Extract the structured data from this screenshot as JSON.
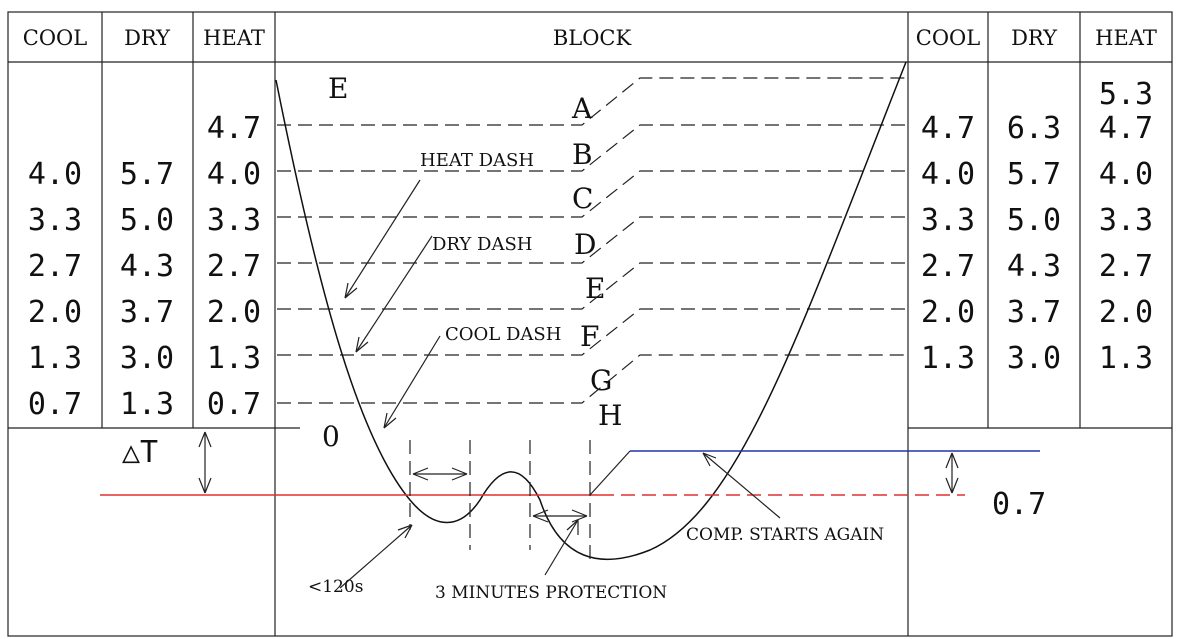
{
  "headers": {
    "left": [
      "COOL",
      "DRY",
      "HEAT"
    ],
    "center": "BLOCK",
    "right": [
      "COOL",
      "DRY",
      "HEAT"
    ]
  },
  "left_table": {
    "cool": [
      "4.0",
      "3.3",
      "2.7",
      "2.0",
      "1.3",
      "0.7"
    ],
    "dry": [
      "5.7",
      "5.0",
      "4.3",
      "3.7",
      "3.0",
      "1.3"
    ],
    "heat": [
      "4.7",
      "4.0",
      "3.3",
      "2.7",
      "2.0",
      "1.3",
      "0.7"
    ]
  },
  "right_table": {
    "cool": [
      "4.7",
      "4.0",
      "3.3",
      "2.7",
      "2.0",
      "1.3"
    ],
    "dry": [
      "6.3",
      "5.7",
      "5.0",
      "4.3",
      "3.7",
      "3.0"
    ],
    "heat": [
      "5.3",
      "4.7",
      "4.0",
      "3.3",
      "2.7",
      "2.0",
      "1.3"
    ]
  },
  "block_letters": [
    "A",
    "B",
    "C",
    "D",
    "E",
    "F",
    "G",
    "H"
  ],
  "labels": {
    "top_e": "E",
    "zero": "0",
    "heat_dash": "HEAT DASH",
    "dry_dash": "DRY DASH",
    "cool_dash": "COOL DASH",
    "delta_t": "△T",
    "offset": "0.7",
    "less_120s": "<120s",
    "three_min": "3 MINUTES PROTECTION",
    "comp_starts": "COMP. STARTS AGAIN"
  },
  "colors": {
    "red_line": "#e03030",
    "blue_line": "#2233aa"
  }
}
